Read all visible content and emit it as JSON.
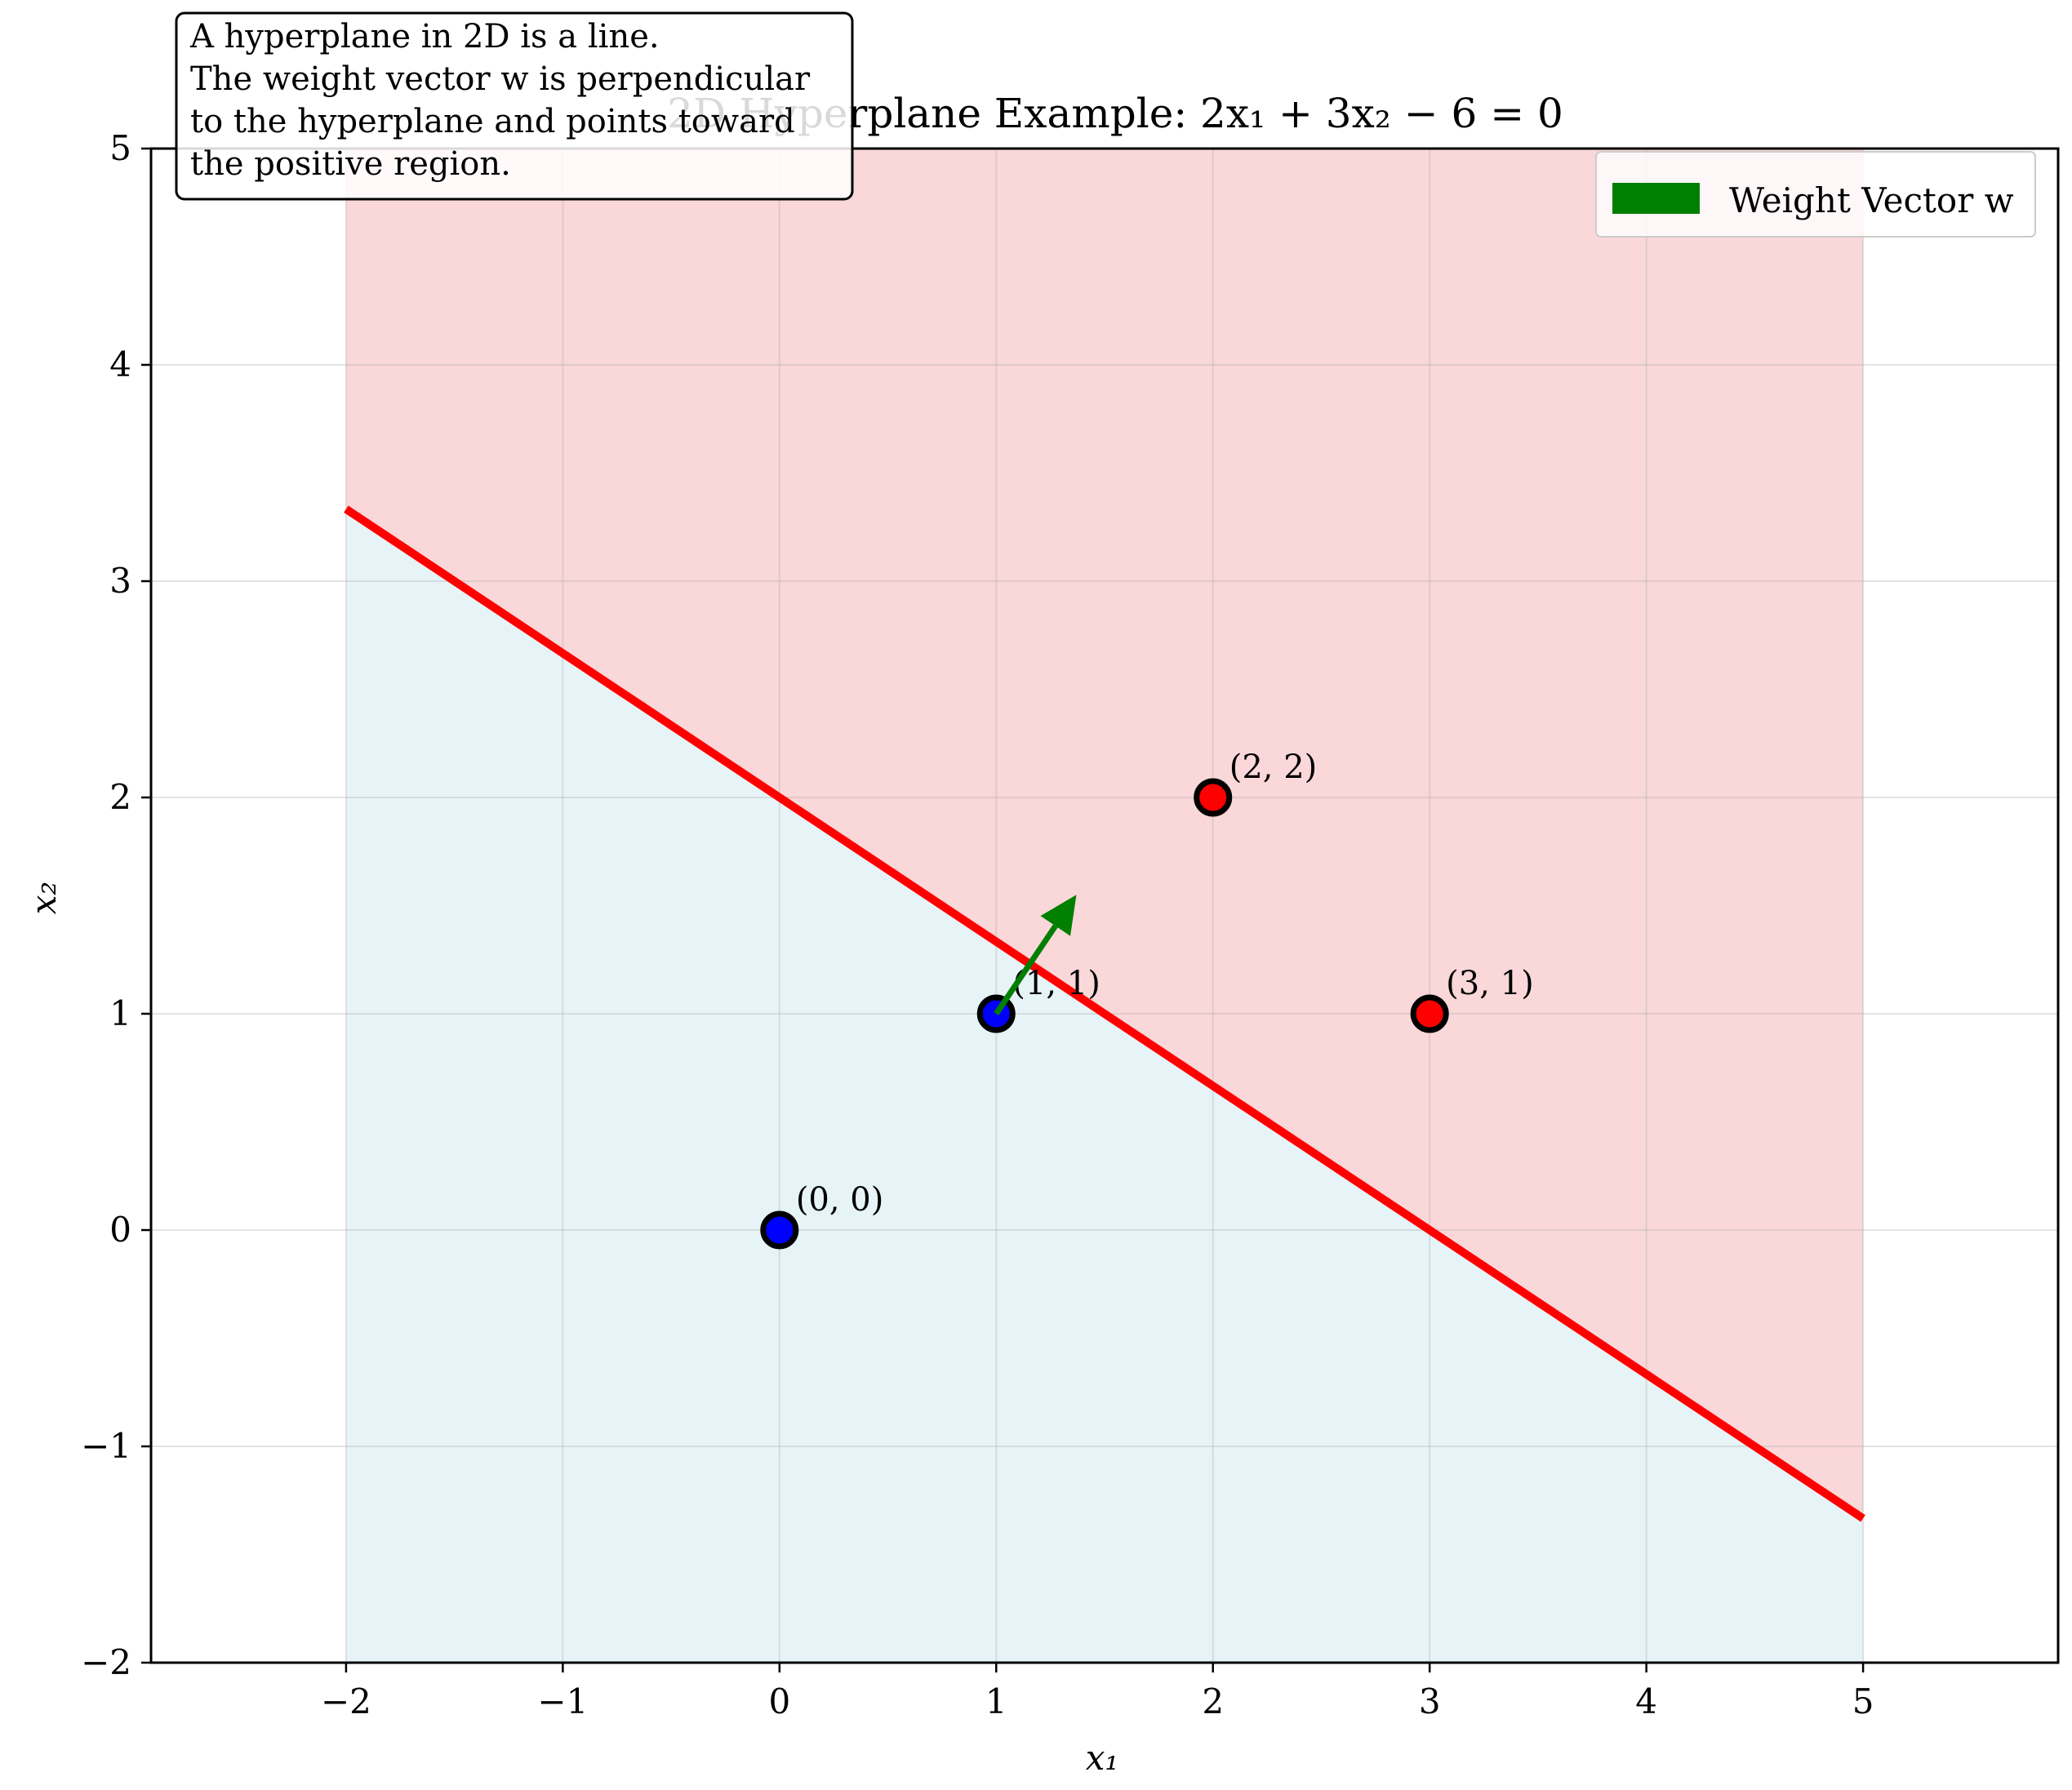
{
  "chart_data": {
    "type": "scatter",
    "title": "2D Hyperplane Example: 2x₁ + 3x₂ − 6 = 0",
    "xlabel": "x₁",
    "ylabel": "x₂",
    "xlim": [
      -2.9,
      5.9
    ],
    "ylim": [
      -2,
      5
    ],
    "xticks": [
      -2,
      -1,
      0,
      1,
      2,
      3,
      4,
      5
    ],
    "yticks": [
      -2,
      -1,
      0,
      1,
      2,
      3,
      4,
      5
    ],
    "xtick_labels": [
      "−2",
      "−1",
      "0",
      "1",
      "2",
      "3",
      "4",
      "5"
    ],
    "ytick_labels": [
      "−2",
      "−1",
      "0",
      "1",
      "2",
      "3",
      "4",
      "5"
    ],
    "grid": true,
    "hyperplane": {
      "w": [
        2,
        3
      ],
      "b": -6,
      "x_range": [
        -2,
        5
      ],
      "color": "#ff0000"
    },
    "regions": {
      "x_range": [
        -2,
        5
      ],
      "positive_color": "#f5b7b9",
      "negative_color": "#d5ecf1"
    },
    "points": [
      {
        "x": 0,
        "y": 0,
        "label": "(0, 0)",
        "color": "#0000ff"
      },
      {
        "x": 1,
        "y": 1,
        "label": "(1, 1)",
        "color": "#0000ff"
      },
      {
        "x": 2,
        "y": 2,
        "label": "(2, 2)",
        "color": "#ff0000"
      },
      {
        "x": 3,
        "y": 1,
        "label": "(3, 1)",
        "color": "#ff0000"
      }
    ],
    "weight_vector": {
      "origin": [
        1,
        1
      ],
      "direction": [
        2,
        3
      ],
      "tip": [
        1.37,
        1.55
      ],
      "color": "#007f00"
    },
    "legend": {
      "position": "top-right",
      "entries": [
        {
          "label": "Weight Vector w",
          "color": "#007f00"
        }
      ]
    },
    "annotation": {
      "position": "top-left",
      "lines": [
        "A hyperplane in 2D is a line.",
        "The weight vector w is perpendicular",
        "to the hyperplane and points toward",
        "the positive region."
      ]
    }
  }
}
